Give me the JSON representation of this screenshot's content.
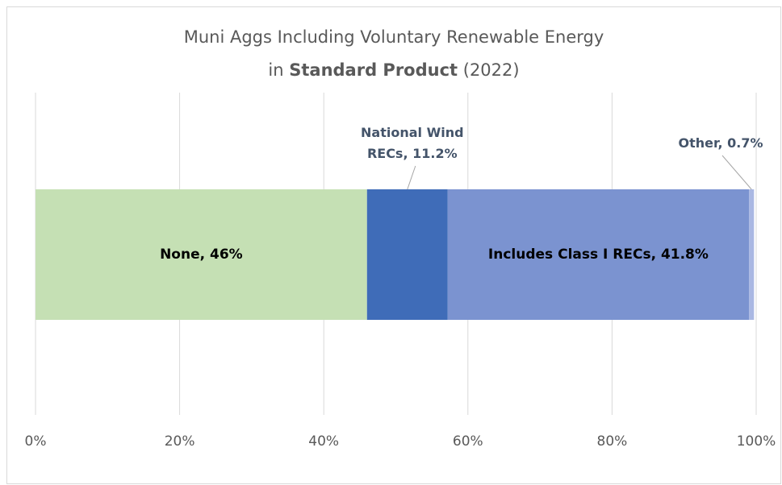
{
  "chart_data": {
    "type": "bar",
    "orientation": "horizontal",
    "stacked": true,
    "title": {
      "line1": "Muni Aggs Including Voluntary Renewable Energy",
      "line2": [
        "in ",
        "Standard Product",
        " (2022)"
      ]
    },
    "series": [
      {
        "color": "#c5e0b4",
        "values": [
          46
        ],
        "value_labels": [
          "None, 46%"
        ],
        "label_position": "inside"
      },
      {
        "color": "#3f6cb8",
        "values": [
          11.2
        ],
        "value_labels": [
          "National Wind RECs, 11.2%"
        ],
        "label_position": "above"
      },
      {
        "color": "#7b93d0",
        "values": [
          41.8
        ],
        "value_labels": [
          "Includes Class I RECs, 41.8%"
        ],
        "label_position": "inside"
      },
      {
        "color": "#aab8e3",
        "values": [
          0.7
        ],
        "value_labels": [
          "Other, 0.7%"
        ],
        "label_position": "above"
      }
    ],
    "xlim": [
      0,
      100
    ],
    "xticks": [
      {
        "value": 0,
        "label": "0%"
      },
      {
        "value": 20,
        "label": "20%"
      },
      {
        "value": 40,
        "label": "40%"
      },
      {
        "value": 60,
        "label": "60%"
      },
      {
        "value": 80,
        "label": "80%"
      },
      {
        "value": 100,
        "label": "100%"
      }
    ],
    "grid": true
  }
}
